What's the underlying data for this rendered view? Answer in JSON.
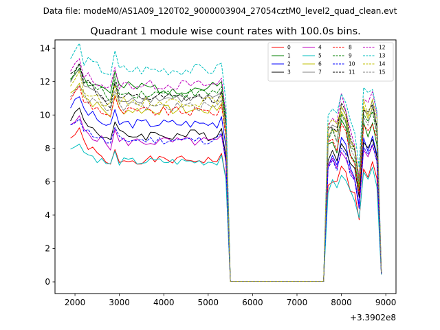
{
  "chart_data": {
    "type": "line",
    "suptitle": "Data file: modeM0/AS1A09_120T02_9000003904_27054cztM0_level2_quad_clean.evt",
    "title": "Quadrant 1 module wise count rates with 100.0s bins.",
    "xlabel": "",
    "ylabel": "",
    "x_offset_label": "+3.3902e8",
    "xlim": [
      1550,
      9230
    ],
    "ylim": [
      -0.7,
      14.5
    ],
    "x_ticks": [
      2000,
      3000,
      4000,
      5000,
      6000,
      7000,
      8000,
      9000
    ],
    "y_ticks": [
      0,
      2,
      4,
      6,
      8,
      10,
      12,
      14
    ],
    "x_tick_labels": [
      "2000",
      "3000",
      "4000",
      "5000",
      "6000",
      "7000",
      "8000",
      "9000"
    ],
    "y_tick_labels": [
      "0",
      "2",
      "4",
      "6",
      "8",
      "10",
      "12",
      "14"
    ],
    "legend": {
      "location": "top-right",
      "columns": 4
    },
    "x_segments": [
      {
        "start": 1900,
        "end": 5400,
        "step": 100
      },
      {
        "start": 5500,
        "end": 7600,
        "step": 2100
      },
      {
        "start": 7700,
        "end": 8900,
        "step": 100
      }
    ],
    "series": [
      {
        "name": "0",
        "color": "#ff0000",
        "dashed": false,
        "base": 7.3,
        "start": 8.6,
        "post": 6.5,
        "amp": 0.25,
        "seed": 1
      },
      {
        "name": "1",
        "color": "#008000",
        "dashed": false,
        "base": 11.6,
        "start": 12.2,
        "post": 9.0,
        "amp": 0.4,
        "seed": 2
      },
      {
        "name": "2",
        "color": "#0000ff",
        "dashed": false,
        "base": 9.5,
        "start": 10.5,
        "post": 8.0,
        "amp": 0.3,
        "seed": 3
      },
      {
        "name": "3",
        "color": "#000000",
        "dashed": false,
        "base": 8.8,
        "start": 9.8,
        "post": 8.2,
        "amp": 0.35,
        "seed": 4
      },
      {
        "name": "4",
        "color": "#bf00bf",
        "dashed": false,
        "base": 8.4,
        "start": 9.3,
        "post": 7.6,
        "amp": 0.3,
        "seed": 5
      },
      {
        "name": "5",
        "color": "#00bfbf",
        "dashed": false,
        "base": 7.2,
        "start": 7.9,
        "post": 6.2,
        "amp": 0.25,
        "seed": 6
      },
      {
        "name": "6",
        "color": "#bfbf00",
        "dashed": false,
        "base": 10.3,
        "start": 11.3,
        "post": 9.8,
        "amp": 0.3,
        "seed": 7
      },
      {
        "name": "7",
        "color": "#808080",
        "dashed": false,
        "base": 11.0,
        "start": 12.0,
        "post": 10.0,
        "amp": 0.3,
        "seed": 8
      },
      {
        "name": "8",
        "color": "#ff0000",
        "dashed": true,
        "base": 10.2,
        "start": 11.0,
        "post": 9.0,
        "amp": 0.3,
        "seed": 9
      },
      {
        "name": "9",
        "color": "#008000",
        "dashed": true,
        "base": 11.3,
        "start": 12.2,
        "post": 9.5,
        "amp": 0.3,
        "seed": 10
      },
      {
        "name": "10",
        "color": "#0000ff",
        "dashed": true,
        "base": 8.5,
        "start": 9.3,
        "post": 7.5,
        "amp": 0.25,
        "seed": 11
      },
      {
        "name": "11",
        "color": "#000000",
        "dashed": true,
        "base": 11.0,
        "start": 12.4,
        "post": 10.0,
        "amp": 0.3,
        "seed": 12
      },
      {
        "name": "12",
        "color": "#bf00bf",
        "dashed": true,
        "base": 11.8,
        "start": 12.6,
        "post": 10.5,
        "amp": 0.3,
        "seed": 13
      },
      {
        "name": "13",
        "color": "#00bfbf",
        "dashed": true,
        "base": 12.7,
        "start": 13.4,
        "post": 11.0,
        "amp": 0.35,
        "seed": 14
      },
      {
        "name": "14",
        "color": "#bfbf00",
        "dashed": true,
        "base": 10.8,
        "start": 11.8,
        "post": 10.2,
        "amp": 0.3,
        "seed": 15
      },
      {
        "name": "15",
        "color": "#808080",
        "dashed": true,
        "base": 10.5,
        "start": 11.2,
        "post": 9.6,
        "amp": 0.3,
        "seed": 16
      }
    ]
  }
}
